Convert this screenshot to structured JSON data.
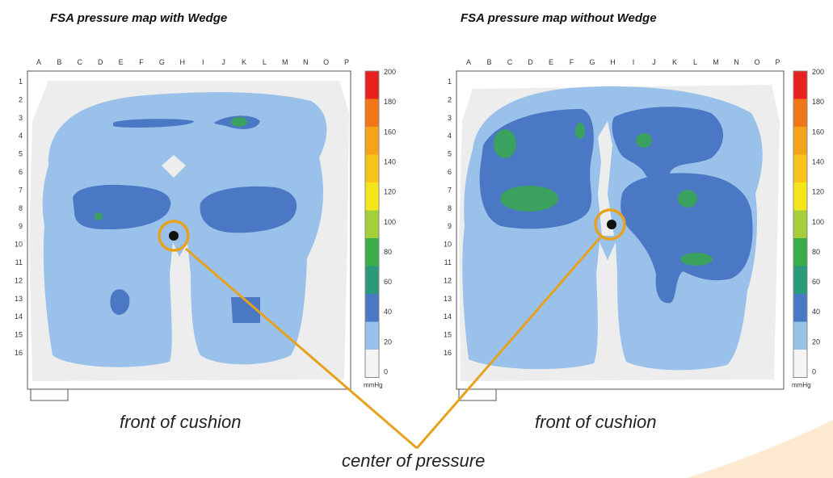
{
  "chart_data": [
    {
      "type": "heatmap",
      "title": "FSA pressure map with Wedge",
      "columns": [
        "A",
        "B",
        "C",
        "D",
        "E",
        "F",
        "G",
        "H",
        "I",
        "J",
        "K",
        "L",
        "M",
        "N",
        "O",
        "P"
      ],
      "rows": [
        "1",
        "2",
        "3",
        "4",
        "5",
        "6",
        "7",
        "8",
        "9",
        "10",
        "11",
        "12",
        "13",
        "14",
        "15",
        "16"
      ],
      "caption": "front of cushion"
    },
    {
      "type": "heatmap",
      "title": "FSA pressure map without Wedge",
      "columns": [
        "A",
        "B",
        "C",
        "D",
        "E",
        "F",
        "G",
        "H",
        "I",
        "J",
        "K",
        "L",
        "M",
        "N",
        "O",
        "P"
      ],
      "rows": [
        "1",
        "2",
        "3",
        "4",
        "5",
        "6",
        "7",
        "8",
        "9",
        "10",
        "11",
        "12",
        "13",
        "14",
        "15",
        "16"
      ],
      "caption": "front of cushion"
    }
  ],
  "scale": {
    "ticks": [
      "200",
      "180",
      "160",
      "140",
      "120",
      "100",
      "80",
      "60",
      "40",
      "20",
      "0"
    ],
    "unit": "mmHg",
    "colors": [
      "#e8201e",
      "#f07818",
      "#f5a31b",
      "#f8c41a",
      "#f3e71c",
      "#a4cf3a",
      "#3aad4a",
      "#2a9a7a",
      "#4b78c5",
      "#9ac1e9",
      "#f4f4f4"
    ]
  },
  "annotation": "center of pressure",
  "colors": {
    "light": "#9ac1e9",
    "medium": "#4b78c5",
    "green": "#3aa15e",
    "background": "#ededed",
    "callout": "#e6a21f"
  }
}
